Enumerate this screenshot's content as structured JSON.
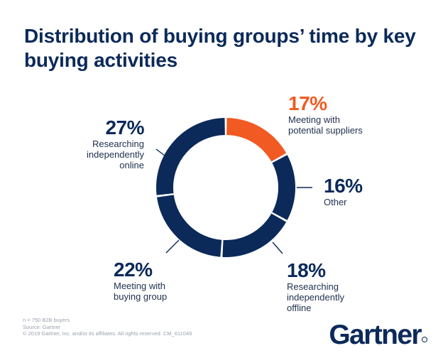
{
  "title": "Distribution of buying groups’ time by key buying activities",
  "chart_data": {
    "type": "pie",
    "title": "Distribution of buying groups’ time by key buying activities",
    "slices": [
      {
        "label": "Meeting with potential suppliers",
        "value": 17,
        "display": "17%",
        "color": "#f15a22"
      },
      {
        "label": "Other",
        "value": 16,
        "display": "16%",
        "color": "#0b2a5a"
      },
      {
        "label": "Researching independently offline",
        "value": 18,
        "display": "18%",
        "color": "#0b2a5a"
      },
      {
        "label": "Meeting with buying group",
        "value": 22,
        "display": "22%",
        "color": "#0b2a5a"
      },
      {
        "label": "Researching independently online",
        "value": 27,
        "display": "27%",
        "color": "#0b2a5a"
      }
    ]
  },
  "labels": {
    "s17_pct": "17%",
    "s17_cap": "Meeting with\npotential suppliers",
    "s16_pct": "16%",
    "s16_cap": "Other",
    "s18_pct": "18%",
    "s18_cap": "Researching\nindependently\noffline",
    "s22_pct": "22%",
    "s22_cap": "Meeting with\nbuying group",
    "s27_pct": "27%",
    "s27_cap": "Researching\nindependently\nonline"
  },
  "footnote": {
    "line1": "n = 750 B2B buyers",
    "line2": "Source: Gartner",
    "line3": "© 2019 Gartner, Inc. and/or its affiliates. All rights reserved. CM_611049"
  },
  "brand": {
    "logo_text": "Gartner"
  },
  "colors": {
    "navy": "#0b2a5a",
    "orange": "#f15a22"
  }
}
